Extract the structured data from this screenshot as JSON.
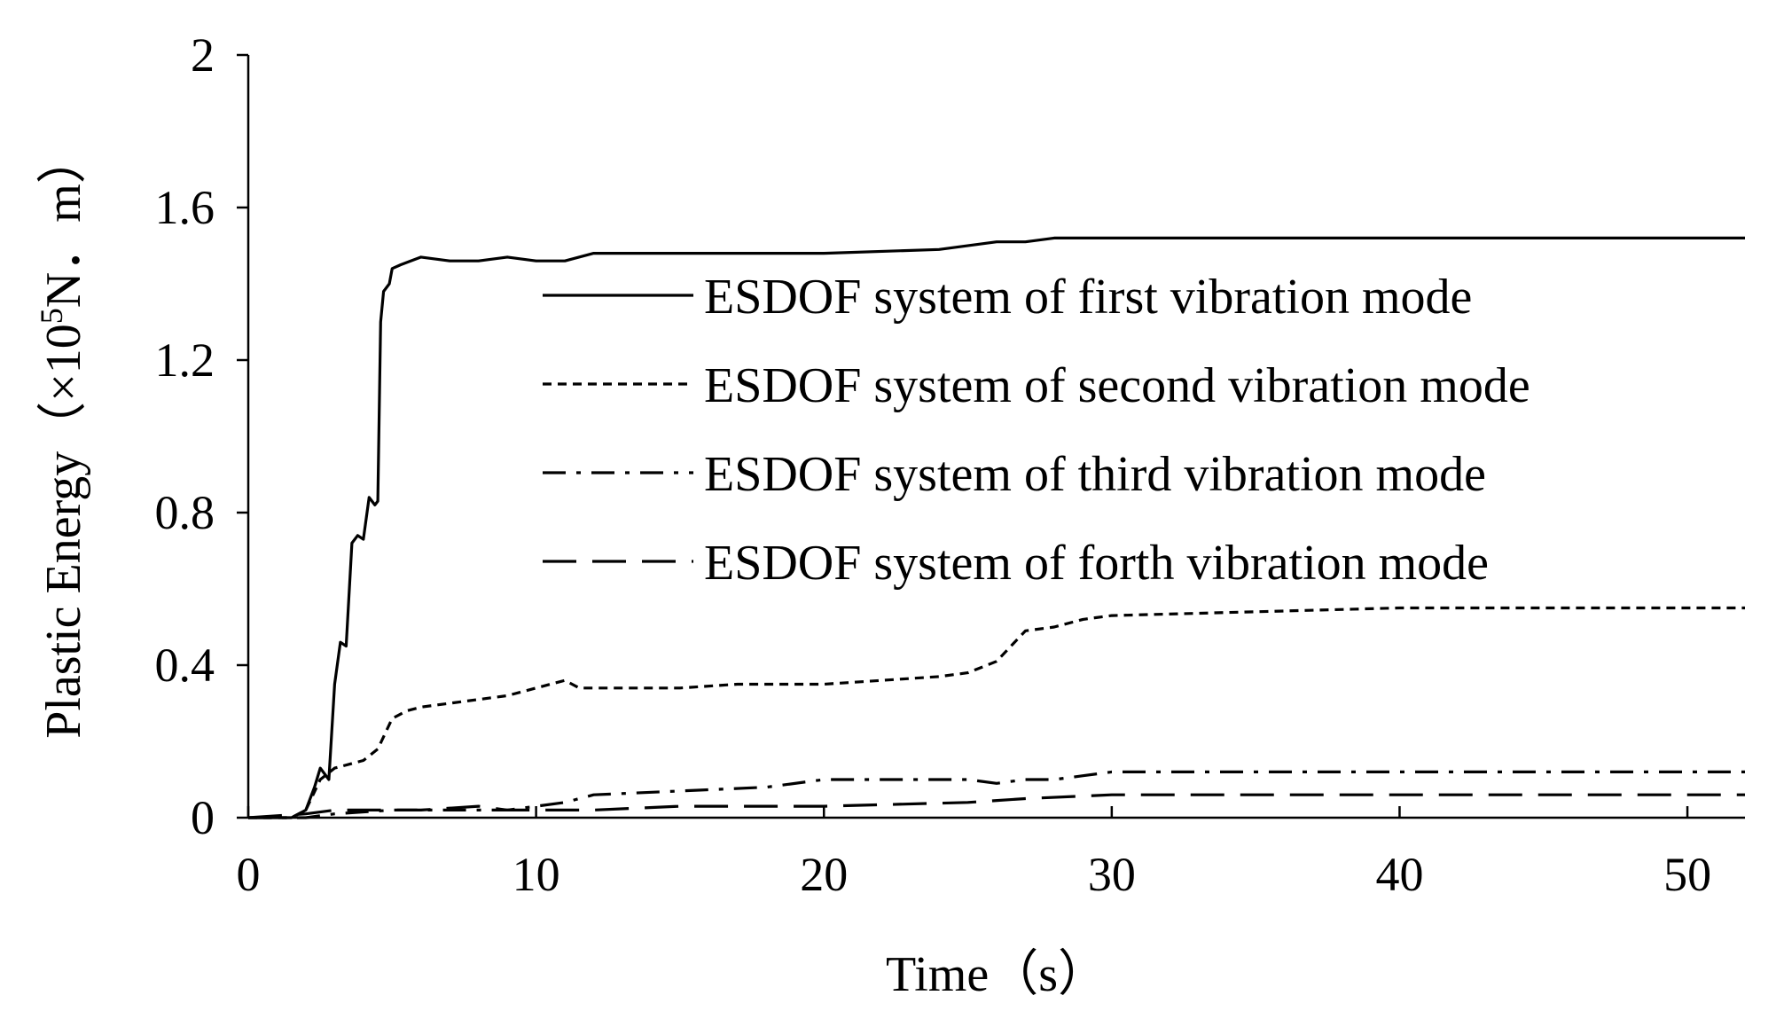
{
  "chart_data": {
    "type": "line",
    "title": "",
    "xlabel": "Time（s）",
    "ylabel_main": "Plastic Energy（×10",
    "ylabel_sup": "5",
    "ylabel_tail": "N．m）",
    "xlim": [
      0,
      52
    ],
    "ylim": [
      0,
      2
    ],
    "x_ticks": [
      0,
      10,
      20,
      30,
      40,
      50
    ],
    "y_ticks": [
      0,
      0.4,
      0.8,
      1.2,
      1.6,
      2
    ],
    "x_tick_labels": [
      "0",
      "10",
      "20",
      "30",
      "40",
      "50"
    ],
    "y_tick_labels": [
      "0",
      "0.4",
      "0.8",
      "1.2",
      "1.6",
      "2"
    ],
    "grid": false,
    "legend_position": "top-right",
    "series": [
      {
        "name": "ESDOF system of first vibration mode",
        "dash": "solid",
        "points": [
          [
            0,
            0
          ],
          [
            1.5,
            0
          ],
          [
            2.0,
            0.02
          ],
          [
            2.3,
            0.08
          ],
          [
            2.5,
            0.13
          ],
          [
            2.8,
            0.1
          ],
          [
            3.0,
            0.35
          ],
          [
            3.2,
            0.46
          ],
          [
            3.4,
            0.45
          ],
          [
            3.6,
            0.72
          ],
          [
            3.8,
            0.74
          ],
          [
            4.0,
            0.73
          ],
          [
            4.2,
            0.84
          ],
          [
            4.4,
            0.82
          ],
          [
            4.5,
            0.83
          ],
          [
            4.6,
            1.3
          ],
          [
            4.7,
            1.38
          ],
          [
            4.9,
            1.4
          ],
          [
            5.0,
            1.44
          ],
          [
            5.3,
            1.45
          ],
          [
            6.0,
            1.47
          ],
          [
            7,
            1.46
          ],
          [
            8,
            1.46
          ],
          [
            9,
            1.47
          ],
          [
            10,
            1.46
          ],
          [
            11,
            1.46
          ],
          [
            12,
            1.48
          ],
          [
            13,
            1.48
          ],
          [
            15,
            1.48
          ],
          [
            20,
            1.48
          ],
          [
            24,
            1.49
          ],
          [
            26,
            1.51
          ],
          [
            27,
            1.51
          ],
          [
            28,
            1.52
          ],
          [
            30,
            1.52
          ],
          [
            35,
            1.52
          ],
          [
            40,
            1.52
          ],
          [
            45,
            1.52
          ],
          [
            52,
            1.52
          ]
        ]
      },
      {
        "name": "ESDOF system of second vibration mode",
        "dash": "short-dash",
        "points": [
          [
            0,
            0
          ],
          [
            1.5,
            0
          ],
          [
            2.0,
            0.02
          ],
          [
            2.5,
            0.1
          ],
          [
            3.0,
            0.13
          ],
          [
            3.5,
            0.14
          ],
          [
            4.0,
            0.15
          ],
          [
            4.5,
            0.18
          ],
          [
            5.0,
            0.26
          ],
          [
            5.5,
            0.28
          ],
          [
            6,
            0.29
          ],
          [
            7,
            0.3
          ],
          [
            8,
            0.31
          ],
          [
            9,
            0.32
          ],
          [
            10,
            0.34
          ],
          [
            10.5,
            0.35
          ],
          [
            11,
            0.36
          ],
          [
            11.5,
            0.34
          ],
          [
            13,
            0.34
          ],
          [
            15,
            0.34
          ],
          [
            17,
            0.35
          ],
          [
            20,
            0.35
          ],
          [
            22,
            0.36
          ],
          [
            24,
            0.37
          ],
          [
            25,
            0.38
          ],
          [
            26,
            0.41
          ],
          [
            26.5,
            0.45
          ],
          [
            27,
            0.49
          ],
          [
            28,
            0.5
          ],
          [
            29,
            0.52
          ],
          [
            30,
            0.53
          ],
          [
            35,
            0.54
          ],
          [
            40,
            0.55
          ],
          [
            45,
            0.55
          ],
          [
            52,
            0.55
          ]
        ]
      },
      {
        "name": "ESDOF system of third vibration mode",
        "dash": "dash-dot",
        "points": [
          [
            0,
            0
          ],
          [
            2,
            0
          ],
          [
            3,
            0.01
          ],
          [
            5,
            0.02
          ],
          [
            7,
            0.02
          ],
          [
            9,
            0.02
          ],
          [
            10,
            0.03
          ],
          [
            11,
            0.04
          ],
          [
            12,
            0.06
          ],
          [
            15,
            0.07
          ],
          [
            18,
            0.08
          ],
          [
            20,
            0.1
          ],
          [
            22,
            0.1
          ],
          [
            25,
            0.1
          ],
          [
            26,
            0.09
          ],
          [
            27,
            0.1
          ],
          [
            28,
            0.1
          ],
          [
            29,
            0.11
          ],
          [
            30,
            0.12
          ],
          [
            35,
            0.12
          ],
          [
            40,
            0.12
          ],
          [
            45,
            0.12
          ],
          [
            52,
            0.12
          ]
        ]
      },
      {
        "name": "ESDOF system of forth vibration mode",
        "dash": "long-dash",
        "points": [
          [
            0,
            0
          ],
          [
            2,
            0.01
          ],
          [
            3,
            0.02
          ],
          [
            5,
            0.02
          ],
          [
            6,
            0.02
          ],
          [
            8,
            0.03
          ],
          [
            9,
            0.02
          ],
          [
            10,
            0.02
          ],
          [
            12,
            0.02
          ],
          [
            15,
            0.03
          ],
          [
            20,
            0.03
          ],
          [
            25,
            0.04
          ],
          [
            27,
            0.05
          ],
          [
            30,
            0.06
          ],
          [
            35,
            0.06
          ],
          [
            40,
            0.06
          ],
          [
            45,
            0.06
          ],
          [
            52,
            0.06
          ]
        ]
      }
    ]
  }
}
